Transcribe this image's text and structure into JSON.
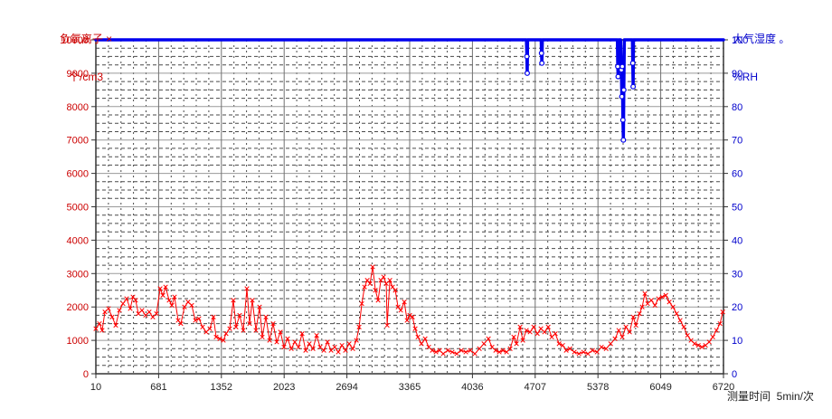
{
  "chart_data": {
    "type": "line",
    "title": "",
    "background": "#ffffff",
    "grid": {
      "major_h_color": "#9a9a9a",
      "major_v_color": "#707070",
      "minor_color": "#4a4a4a",
      "frame_color": "#333333"
    },
    "x_axis": {
      "title": "测量时间  5min/次",
      "range": [
        10,
        6720
      ],
      "ticks": [
        10,
        681,
        1352,
        2023,
        2694,
        3365,
        4036,
        4707,
        5378,
        6049,
        6720
      ],
      "minor_divisions": 5,
      "tick_color": "#222222"
    },
    "left_axis": {
      "legend_line1": "负氧离子 ×",
      "legend_line2": "个/cm3",
      "range": [
        0,
        10000
      ],
      "tick_step": 1000,
      "minor_step": 250,
      "color": "#cc0000"
    },
    "right_axis": {
      "legend_line1": "大气湿度 。",
      "legend_line2": "%RH",
      "range": [
        0,
        100
      ],
      "tick_step": 10,
      "color": "#0000cc"
    },
    "series": [
      {
        "name": "负氧离子",
        "axis": "left",
        "color": "#ff0000",
        "marker": "x",
        "points": [
          [
            10,
            1350
          ],
          [
            49,
            1500
          ],
          [
            78,
            1300
          ],
          [
            107,
            1850
          ],
          [
            145,
            1950
          ],
          [
            184,
            1700
          ],
          [
            223,
            1450
          ],
          [
            261,
            1900
          ],
          [
            300,
            2100
          ],
          [
            339,
            2250
          ],
          [
            377,
            1950
          ],
          [
            406,
            2300
          ],
          [
            435,
            2200
          ],
          [
            464,
            1800
          ],
          [
            503,
            1900
          ],
          [
            542,
            1750
          ],
          [
            580,
            1850
          ],
          [
            619,
            1700
          ],
          [
            658,
            1800
          ],
          [
            697,
            2550
          ],
          [
            726,
            2350
          ],
          [
            755,
            2600
          ],
          [
            793,
            2200
          ],
          [
            822,
            2050
          ],
          [
            851,
            2300
          ],
          [
            890,
            1600
          ],
          [
            919,
            1500
          ],
          [
            958,
            2000
          ],
          [
            996,
            2150
          ],
          [
            1035,
            2050
          ],
          [
            1074,
            1600
          ],
          [
            1112,
            1650
          ],
          [
            1151,
            1400
          ],
          [
            1190,
            1250
          ],
          [
            1228,
            1350
          ],
          [
            1267,
            1700
          ],
          [
            1296,
            1100
          ],
          [
            1335,
            1050
          ],
          [
            1373,
            1000
          ],
          [
            1402,
            1200
          ],
          [
            1441,
            1350
          ],
          [
            1480,
            2200
          ],
          [
            1509,
            1400
          ],
          [
            1547,
            1750
          ],
          [
            1586,
            1300
          ],
          [
            1625,
            2550
          ],
          [
            1654,
            1500
          ],
          [
            1683,
            2200
          ],
          [
            1721,
            1300
          ],
          [
            1760,
            2000
          ],
          [
            1789,
            1100
          ],
          [
            1828,
            1700
          ],
          [
            1867,
            1000
          ],
          [
            1905,
            1500
          ],
          [
            1944,
            950
          ],
          [
            1983,
            1250
          ],
          [
            2021,
            800
          ],
          [
            2060,
            1050
          ],
          [
            2099,
            750
          ],
          [
            2137,
            950
          ],
          [
            2176,
            800
          ],
          [
            2215,
            1200
          ],
          [
            2253,
            700
          ],
          [
            2292,
            900
          ],
          [
            2331,
            750
          ],
          [
            2370,
            1150
          ],
          [
            2408,
            800
          ],
          [
            2447,
            700
          ],
          [
            2486,
            950
          ],
          [
            2525,
            700
          ],
          [
            2563,
            800
          ],
          [
            2602,
            650
          ],
          [
            2641,
            850
          ],
          [
            2679,
            700
          ],
          [
            2718,
            900
          ],
          [
            2757,
            750
          ],
          [
            2796,
            1000
          ],
          [
            2825,
            1400
          ],
          [
            2854,
            2100
          ],
          [
            2883,
            2600
          ],
          [
            2912,
            2800
          ],
          [
            2941,
            2700
          ],
          [
            2970,
            3200
          ],
          [
            2999,
            2500
          ],
          [
            3028,
            2200
          ],
          [
            3057,
            2800
          ],
          [
            3086,
            2900
          ],
          [
            3115,
            2700
          ],
          [
            3124,
            1450
          ],
          [
            3153,
            2800
          ],
          [
            3182,
            2600
          ],
          [
            3211,
            2500
          ],
          [
            3240,
            2000
          ],
          [
            3269,
            1900
          ],
          [
            3308,
            2150
          ],
          [
            3337,
            1600
          ],
          [
            3366,
            1750
          ],
          [
            3395,
            1700
          ],
          [
            3424,
            1350
          ],
          [
            3453,
            1100
          ],
          [
            3491,
            900
          ],
          [
            3530,
            1050
          ],
          [
            3569,
            800
          ],
          [
            3607,
            700
          ],
          [
            3646,
            650
          ],
          [
            3685,
            700
          ],
          [
            3724,
            600
          ],
          [
            3772,
            700
          ],
          [
            3820,
            650
          ],
          [
            3869,
            600
          ],
          [
            3917,
            700
          ],
          [
            3965,
            650
          ],
          [
            4014,
            700
          ],
          [
            4062,
            600
          ],
          [
            4110,
            750
          ],
          [
            4159,
            900
          ],
          [
            4207,
            1050
          ],
          [
            4246,
            800
          ],
          [
            4284,
            700
          ],
          [
            4323,
            650
          ],
          [
            4362,
            700
          ],
          [
            4401,
            650
          ],
          [
            4439,
            750
          ],
          [
            4478,
            1100
          ],
          [
            4507,
            900
          ],
          [
            4546,
            1400
          ],
          [
            4575,
            1000
          ],
          [
            4613,
            1300
          ],
          [
            4652,
            1250
          ],
          [
            4691,
            1400
          ],
          [
            4730,
            1200
          ],
          [
            4768,
            1350
          ],
          [
            4807,
            1250
          ],
          [
            4846,
            1400
          ],
          [
            4884,
            1100
          ],
          [
            4923,
            1200
          ],
          [
            4962,
            900
          ],
          [
            5001,
            850
          ],
          [
            5039,
            700
          ],
          [
            5078,
            750
          ],
          [
            5126,
            650
          ],
          [
            5175,
            600
          ],
          [
            5223,
            650
          ],
          [
            5271,
            600
          ],
          [
            5320,
            700
          ],
          [
            5368,
            650
          ],
          [
            5416,
            800
          ],
          [
            5465,
            750
          ],
          [
            5513,
            900
          ],
          [
            5561,
            1050
          ],
          [
            5600,
            1300
          ],
          [
            5638,
            1100
          ],
          [
            5677,
            1400
          ],
          [
            5716,
            1250
          ],
          [
            5755,
            1700
          ],
          [
            5784,
            1450
          ],
          [
            5822,
            1800
          ],
          [
            5851,
            2000
          ],
          [
            5880,
            2400
          ],
          [
            5909,
            2100
          ],
          [
            5948,
            2200
          ],
          [
            5987,
            2050
          ],
          [
            6025,
            2250
          ],
          [
            6064,
            2300
          ],
          [
            6103,
            2350
          ],
          [
            6141,
            2150
          ],
          [
            6180,
            2000
          ],
          [
            6219,
            1800
          ],
          [
            6257,
            1600
          ],
          [
            6296,
            1400
          ],
          [
            6335,
            1150
          ],
          [
            6373,
            1000
          ],
          [
            6412,
            900
          ],
          [
            6451,
            850
          ],
          [
            6490,
            800
          ],
          [
            6528,
            850
          ],
          [
            6567,
            950
          ],
          [
            6606,
            1100
          ],
          [
            6645,
            1300
          ],
          [
            6683,
            1500
          ],
          [
            6712,
            1850
          ]
        ]
      },
      {
        "name": "大气湿度",
        "axis": "right",
        "color": "#0000ee",
        "marker": "circle",
        "points": [
          [
            10,
            100
          ],
          [
            4560,
            100
          ],
          [
            4613,
            100
          ],
          [
            4618,
            95
          ],
          [
            4622,
            90
          ],
          [
            4626,
            100
          ],
          [
            4750,
            100
          ],
          [
            4771,
            100
          ],
          [
            4775,
            96
          ],
          [
            4779,
            93
          ],
          [
            4783,
            100
          ],
          [
            5560,
            100
          ],
          [
            5586,
            100
          ],
          [
            5590,
            92
          ],
          [
            5594,
            89
          ],
          [
            5598,
            100
          ],
          [
            5620,
            100
          ],
          [
            5628,
            91
          ],
          [
            5633,
            83
          ],
          [
            5638,
            92
          ],
          [
            5645,
            76
          ],
          [
            5650,
            70
          ],
          [
            5655,
            85
          ],
          [
            5660,
            100
          ],
          [
            5720,
            100
          ],
          [
            5746,
            100
          ],
          [
            5750,
            93
          ],
          [
            5754,
            86
          ],
          [
            5758,
            100
          ],
          [
            6720,
            100
          ]
        ]
      }
    ],
    "layout": {
      "plot_left": 106,
      "plot_top": 44,
      "plot_right": 800,
      "plot_bottom": 413
    }
  }
}
